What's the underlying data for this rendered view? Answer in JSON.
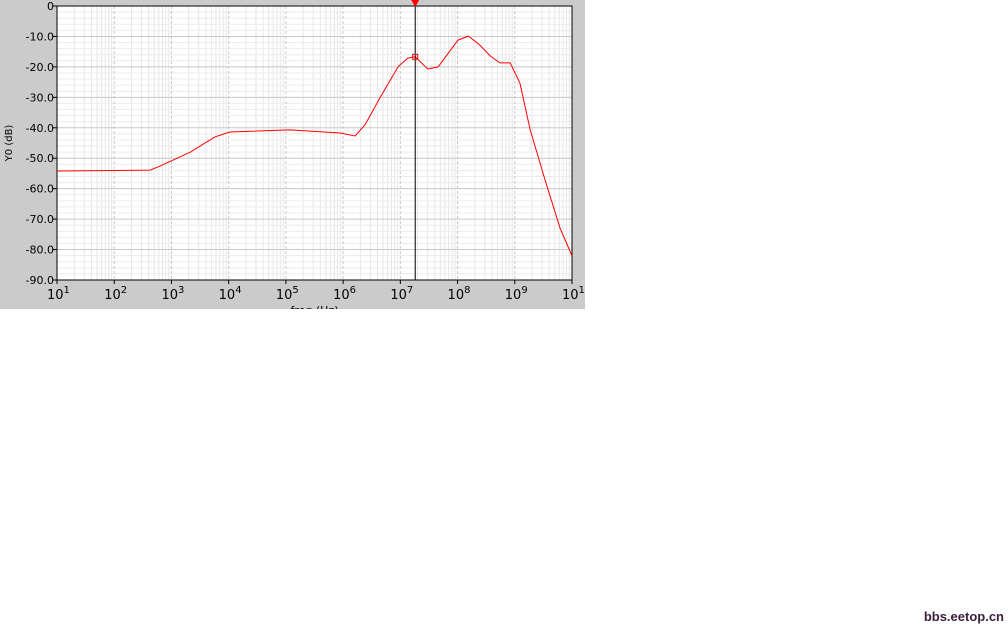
{
  "chart_data": {
    "type": "line",
    "xlabel": "freq (Hz)",
    "ylabel": "Y0 (dB)",
    "xscale": "log",
    "xlim": [
      10,
      10000000000
    ],
    "ylim": [
      -90,
      0
    ],
    "x_ticks": [
      {
        "base": "10",
        "exp": "1"
      },
      {
        "base": "10",
        "exp": "2"
      },
      {
        "base": "10",
        "exp": "3"
      },
      {
        "base": "10",
        "exp": "4"
      },
      {
        "base": "10",
        "exp": "5"
      },
      {
        "base": "10",
        "exp": "6"
      },
      {
        "base": "10",
        "exp": "7"
      },
      {
        "base": "10",
        "exp": "8"
      },
      {
        "base": "10",
        "exp": "9"
      },
      {
        "base": "10",
        "exp": "10"
      }
    ],
    "y_ticks": [
      "0",
      "-10.0",
      "-20.0",
      "-30.0",
      "-40.0",
      "-50.0",
      "-60.0",
      "-70.0",
      "-80.0",
      "-90.0"
    ],
    "grid": true,
    "series": [
      {
        "color": "#ff0000",
        "x": [
          10,
          427,
          631,
          2140,
          5750,
          10500,
          117000,
          891000,
          1620000,
          2400000,
          4470000,
          9120000,
          13500000,
          18200000,
          30200000,
          45700000,
          102000000,
          155000000,
          245000000,
          372000000,
          550000000,
          832000000,
          1230000000,
          1860000000,
          3390000000,
          6170000000,
          10000000000
        ],
        "y": [
          -54.2,
          -53.9,
          -52.6,
          -48.0,
          -43.0,
          -41.4,
          -40.7,
          -41.7,
          -42.7,
          -39.1,
          -30.0,
          -20.0,
          -17.1,
          -16.7,
          -20.7,
          -20.0,
          -11.2,
          -9.9,
          -12.8,
          -16.4,
          -18.7,
          -18.7,
          -25.3,
          -40.7,
          -57.2,
          -72.9,
          -82.1
        ]
      }
    ],
    "marker": {
      "x": 18200000,
      "y": -16.7,
      "color": "#ff0000"
    }
  },
  "watermark": "bbs.eetop.cn"
}
